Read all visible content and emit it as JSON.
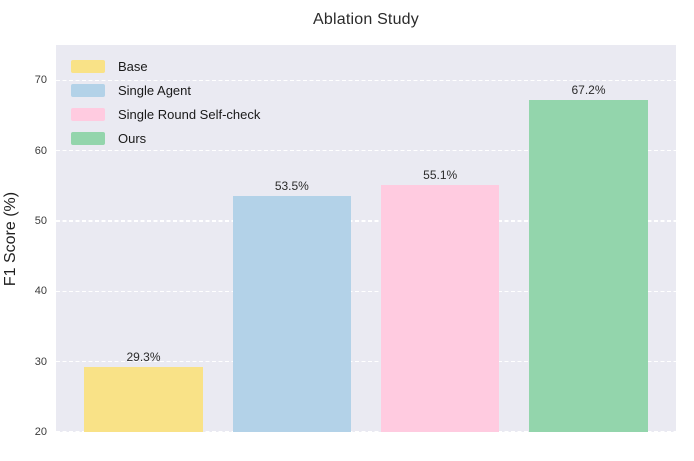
{
  "chart_data": {
    "type": "bar",
    "title": "Ablation Study",
    "xlabel": "",
    "ylabel": "F1 Score (%)",
    "categories": [
      "Base",
      "Single Agent",
      "Single Round Self-check",
      "Ours"
    ],
    "values": [
      29.3,
      53.5,
      55.1,
      67.2
    ],
    "bar_labels": [
      "29.3%",
      "53.5%",
      "55.1%",
      "67.2%"
    ],
    "colors": [
      "#f9e287",
      "#b3d2e8",
      "#ffcbe0",
      "#93d5ac"
    ],
    "ylim": [
      20,
      75
    ],
    "yticks": [
      20,
      30,
      40,
      50,
      60,
      70
    ],
    "xlim": [
      -0.59,
      3.59
    ],
    "bar_width": 0.8,
    "grid": "horizontal-dashed-white",
    "plot_background": "#eaeaf2",
    "legend": {
      "position": "upper-left",
      "frame": false,
      "entries": [
        "Base",
        "Single Agent",
        "Single Round Self-check",
        "Ours"
      ]
    }
  }
}
